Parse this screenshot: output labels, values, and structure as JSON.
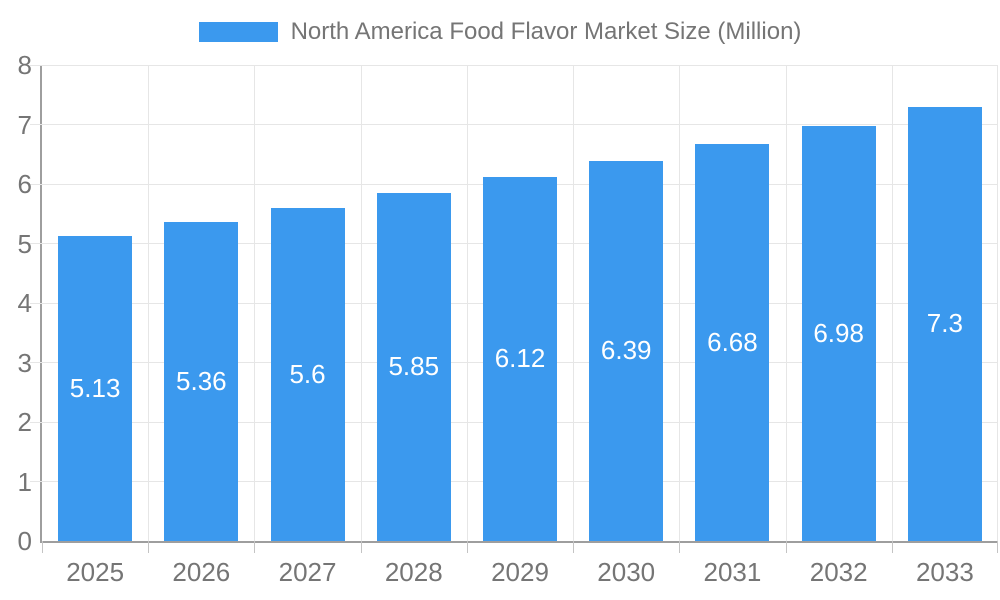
{
  "chart_data": {
    "type": "bar",
    "title": "North America Food Flavor Market Size (Million)",
    "categories": [
      "2025",
      "2026",
      "2027",
      "2028",
      "2029",
      "2030",
      "2031",
      "2032",
      "2033"
    ],
    "values": [
      5.13,
      5.36,
      5.6,
      5.85,
      6.12,
      6.39,
      6.68,
      6.98,
      7.3
    ],
    "series_name": "North America Food Flavor Market Size (Million)",
    "xlabel": "",
    "ylabel": "",
    "ylim": [
      0,
      8
    ],
    "yticks": [
      0,
      1,
      2,
      3,
      4,
      5,
      6,
      7,
      8
    ],
    "grid": true,
    "legend_position": "top-center",
    "value_labels": "inside-center"
  },
  "colors": {
    "bar": "#3b99ee",
    "value_label": "#ffffff",
    "grid": "#e6e6e6",
    "axis": "#9e9e9e",
    "text": "#757575",
    "background": "#ffffff"
  }
}
